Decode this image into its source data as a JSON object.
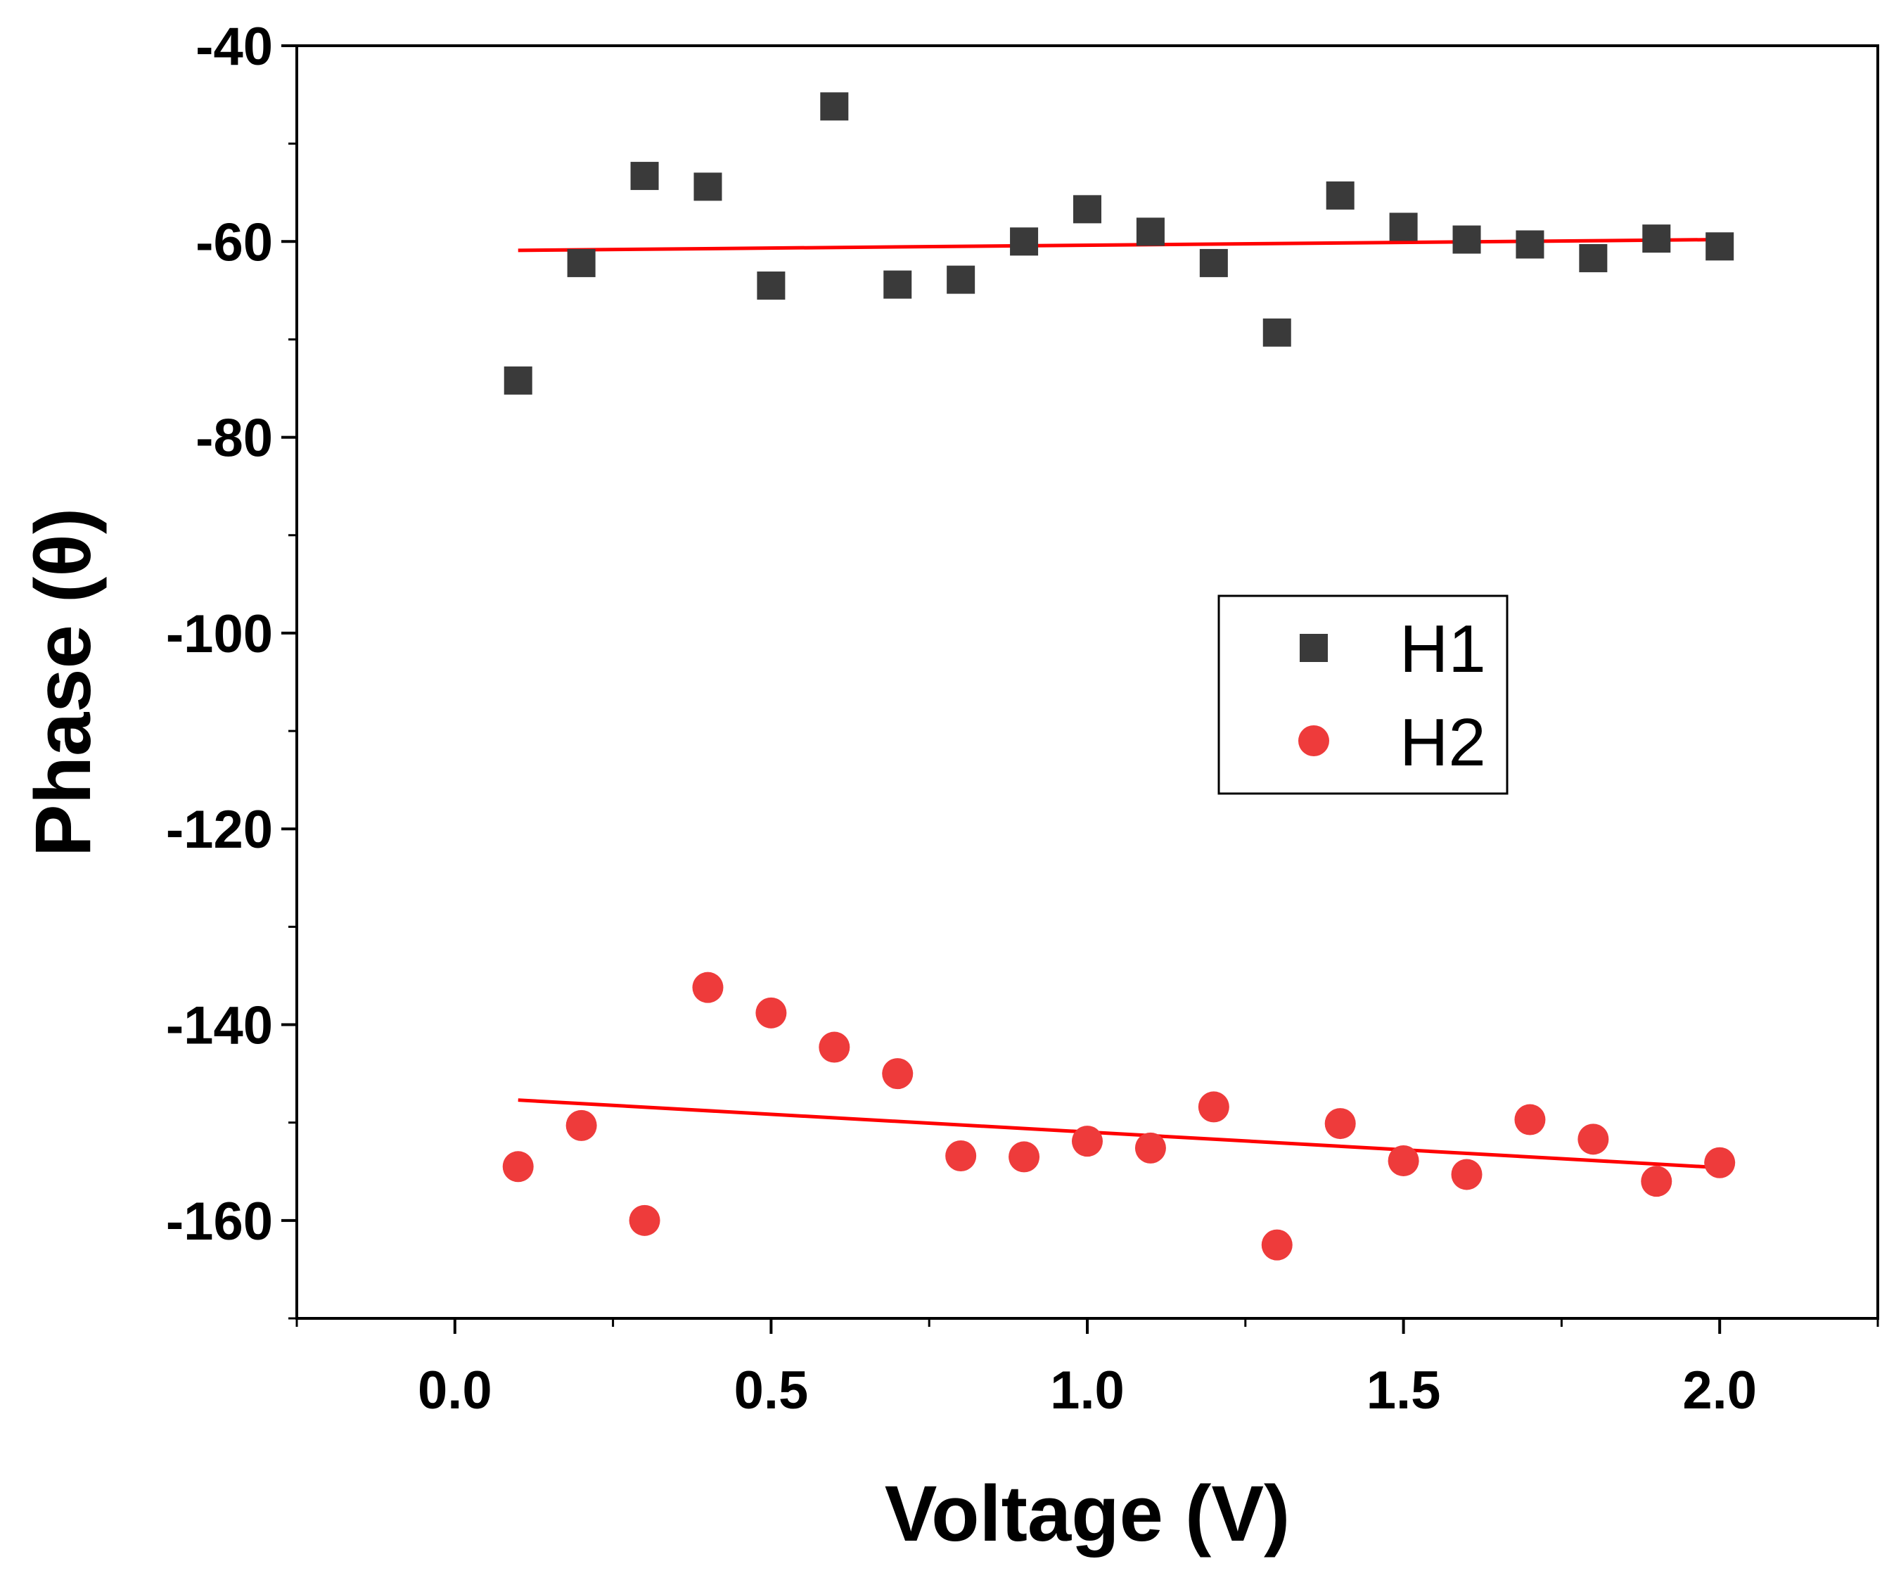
{
  "chart_data": {
    "type": "scatter",
    "title": "",
    "xlabel": "Voltage (V)",
    "ylabel": "Phase (θ)",
    "xlim": [
      -0.25,
      2.25
    ],
    "ylim": [
      -170,
      -40
    ],
    "xticks": [
      0.0,
      0.5,
      1.0,
      1.5,
      2.0
    ],
    "xtick_labels": [
      "0.0",
      "0.5",
      "1.0",
      "1.5",
      "2.0"
    ],
    "yticks": [
      -40,
      -60,
      -80,
      -100,
      -120,
      -140,
      -160
    ],
    "ytick_labels": [
      "-40",
      "-60",
      "-80",
      "-100",
      "-120",
      "-140",
      "-160"
    ],
    "legend_position": "center-right",
    "series": [
      {
        "name": "H1",
        "marker": "square",
        "color": "#3a3a3a",
        "x": [
          0.1,
          0.2,
          0.3,
          0.4,
          0.5,
          0.6,
          0.7,
          0.8,
          0.9,
          1.0,
          1.1,
          1.2,
          1.3,
          1.4,
          1.5,
          1.6,
          1.7,
          1.8,
          1.9,
          2.0
        ],
        "values": [
          -74.2,
          -62.2,
          -53.3,
          -54.4,
          -64.5,
          -46.2,
          -64.4,
          -63.9,
          -60.0,
          -56.7,
          -59.0,
          -62.2,
          -69.3,
          -55.3,
          -58.5,
          -59.8,
          -60.3,
          -61.7,
          -59.7,
          -60.5
        ],
        "fit": {
          "x": [
            0.1,
            2.0
          ],
          "y": [
            -60.9,
            -59.8
          ],
          "color": "#ff0000"
        }
      },
      {
        "name": "H2",
        "marker": "circle",
        "color": "#ee3b3b",
        "x": [
          0.1,
          0.2,
          0.3,
          0.4,
          0.5,
          0.6,
          0.7,
          0.8,
          0.9,
          1.0,
          1.1,
          1.2,
          1.3,
          1.4,
          1.5,
          1.6,
          1.7,
          1.8,
          1.9,
          2.0
        ],
        "values": [
          -154.5,
          -150.3,
          -160.0,
          -136.2,
          -138.8,
          -142.3,
          -145.0,
          -153.4,
          -153.5,
          -151.9,
          -152.6,
          -148.4,
          -162.5,
          -150.1,
          -153.9,
          -155.3,
          -149.7,
          -151.7,
          -156.0,
          -154.1
        ],
        "fit": {
          "x": [
            0.1,
            2.0
          ],
          "y": [
            -147.7,
            -154.6
          ],
          "color": "#ff0000"
        }
      }
    ]
  }
}
